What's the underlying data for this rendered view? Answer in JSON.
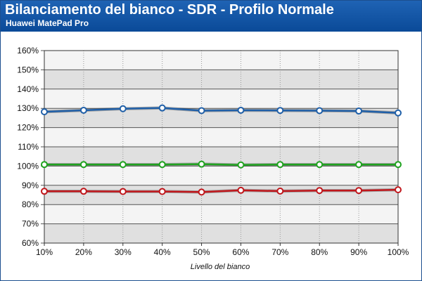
{
  "chart_data": {
    "type": "line",
    "title": "Bilanciamento del bianco - SDR - Profilo Normale",
    "subtitle": "Huawei MatePad Pro",
    "xlabel": "Livello del bianco",
    "ylabel": "",
    "categories": [
      "10%",
      "20%",
      "30%",
      "40%",
      "50%",
      "60%",
      "70%",
      "80%",
      "90%",
      "100%"
    ],
    "y_ticks": [
      "60%",
      "70%",
      "80%",
      "90%",
      "100%",
      "110%",
      "120%",
      "130%",
      "140%",
      "150%",
      "160%"
    ],
    "ylim": [
      60,
      160
    ],
    "grid": true,
    "legend": "none",
    "series": [
      {
        "color": "#1f5fa8",
        "values": [
          128.2,
          129.0,
          129.8,
          130.2,
          128.8,
          129.0,
          128.9,
          128.8,
          128.6,
          127.6
        ]
      },
      {
        "color": "#1fa31f",
        "values": [
          100.8,
          100.8,
          100.8,
          100.8,
          101.0,
          100.6,
          100.8,
          100.8,
          100.8,
          100.8
        ]
      },
      {
        "color": "#c0161b",
        "values": [
          86.9,
          86.9,
          86.8,
          86.8,
          86.5,
          87.4,
          87.0,
          87.3,
          87.3,
          87.7
        ]
      }
    ]
  }
}
